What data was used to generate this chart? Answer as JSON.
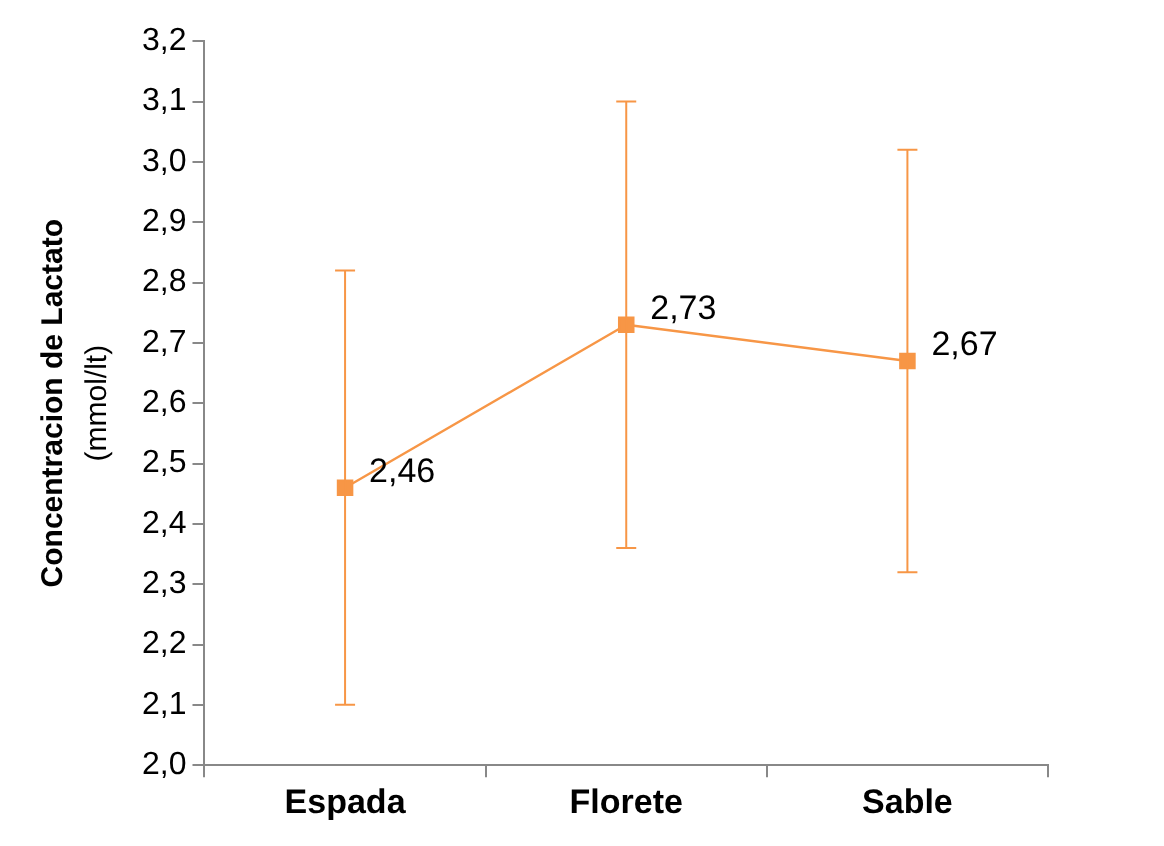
{
  "chart_data": {
    "type": "line",
    "ylabel": "Concentracion de Lactato\n(mmol/lt)",
    "categories": [
      "Espada",
      "Florete",
      "Sable"
    ],
    "series": [
      {
        "color": "#f79646",
        "values": [
          2.46,
          2.73,
          2.67
        ],
        "errors": [
          [
            2.1,
            2.82
          ],
          [
            2.36,
            3.1
          ],
          [
            2.32,
            3.02
          ]
        ],
        "value_labels": [
          "2,46",
          "2,73",
          "2,67"
        ]
      }
    ],
    "ylim": [
      2.0,
      3.2
    ],
    "yticks": [
      {
        "value": 2.0,
        "label": "2,0"
      },
      {
        "value": 2.1,
        "label": "2,1"
      },
      {
        "value": 2.2,
        "label": "2,2"
      },
      {
        "value": 2.3,
        "label": "2,3"
      },
      {
        "value": 2.4,
        "label": "2,4"
      },
      {
        "value": 2.5,
        "label": "2,5"
      },
      {
        "value": 2.6,
        "label": "2,6"
      },
      {
        "value": 2.7,
        "label": "2,7"
      },
      {
        "value": 2.8,
        "label": "2,8"
      },
      {
        "value": 2.9,
        "label": "2,9"
      },
      {
        "value": 3.0,
        "label": "3,0"
      },
      {
        "value": 3.1,
        "label": "3,1"
      },
      {
        "value": 3.2,
        "label": "3,2"
      }
    ],
    "grid": false,
    "legend": false,
    "marker": "square",
    "line_style": "solid"
  }
}
